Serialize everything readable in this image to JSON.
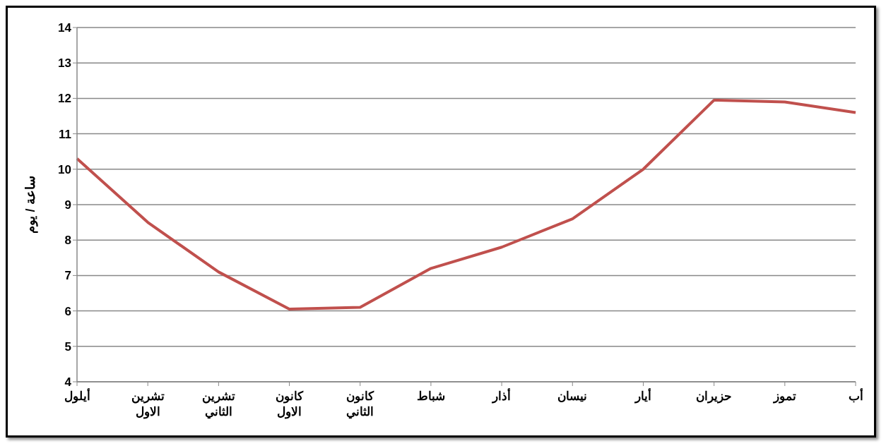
{
  "chart_data": {
    "type": "line",
    "ylabel": "ساعة / يوم",
    "categories": [
      "أيلول",
      "تشرين الاول",
      "تشرين الثاني",
      "كانون الاول",
      "كانون الثاني",
      "شباط",
      "أذار",
      "نيسان",
      "أيار",
      "حزيران",
      "تموز",
      "أب"
    ],
    "series": [
      {
        "color": "#c0504d",
        "values": [
          10.3,
          8.5,
          7.1,
          6.05,
          6.1,
          7.2,
          7.8,
          8.6,
          10.0,
          11.95,
          11.9,
          11.6
        ]
      }
    ],
    "ylim": [
      4,
      14
    ],
    "yticks": [
      4,
      5,
      6,
      7,
      8,
      9,
      10,
      11,
      12,
      13,
      14
    ],
    "grid": "y",
    "legend": false,
    "marker": "none",
    "line_style": "solid"
  }
}
